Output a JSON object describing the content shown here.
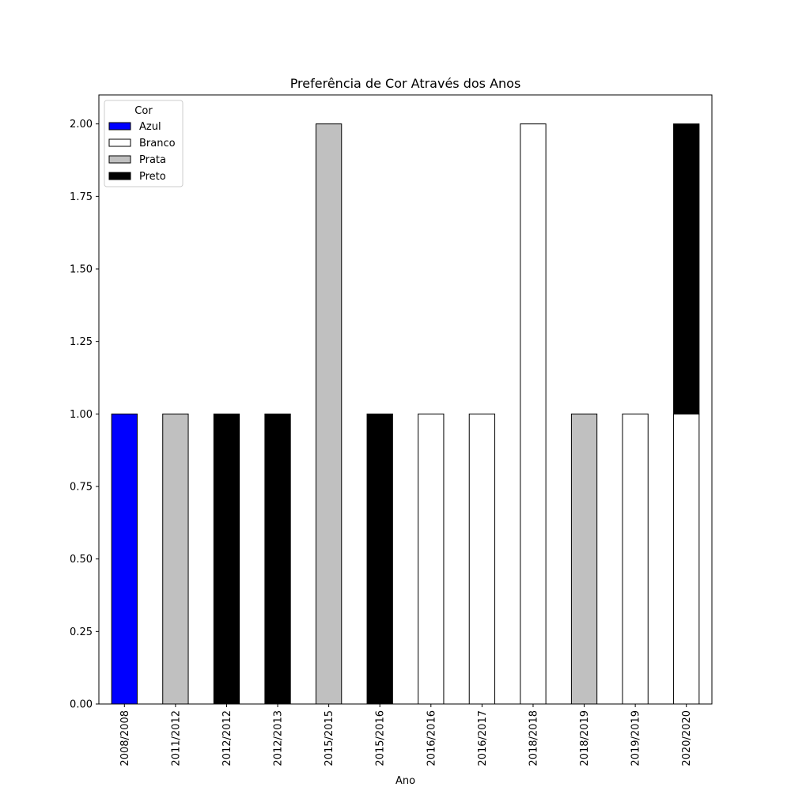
{
  "chart_data": {
    "type": "bar",
    "stacked": true,
    "title": "Preferência de Cor Através dos Anos",
    "xlabel": "Ano",
    "ylabel": "",
    "ylim": [
      0,
      2.1
    ],
    "yticks": [
      "0.00",
      "0.25",
      "0.50",
      "0.75",
      "1.00",
      "1.25",
      "1.50",
      "1.75",
      "2.00"
    ],
    "categories": [
      "2008/2008",
      "2011/2012",
      "2012/2012",
      "2012/2013",
      "2015/2015",
      "2015/2016",
      "2016/2016",
      "2016/2017",
      "2018/2018",
      "2018/2019",
      "2019/2019",
      "2020/2020"
    ],
    "series": [
      {
        "name": "Azul",
        "color": "#0000ff",
        "values": [
          1,
          0,
          0,
          0,
          0,
          0,
          0,
          0,
          0,
          0,
          0,
          0
        ]
      },
      {
        "name": "Branco",
        "color": "#ffffff",
        "values": [
          0,
          0,
          0,
          0,
          0,
          0,
          1,
          1,
          2,
          0,
          1,
          1
        ]
      },
      {
        "name": "Prata",
        "color": "#c0c0c0",
        "values": [
          0,
          1,
          0,
          0,
          2,
          0,
          0,
          0,
          0,
          1,
          0,
          0
        ]
      },
      {
        "name": "Preto",
        "color": "#000000",
        "values": [
          0,
          0,
          1,
          1,
          0,
          1,
          0,
          0,
          0,
          0,
          0,
          1
        ]
      }
    ],
    "legend": {
      "title": "Cor",
      "position": "top-left"
    },
    "grid": false
  }
}
